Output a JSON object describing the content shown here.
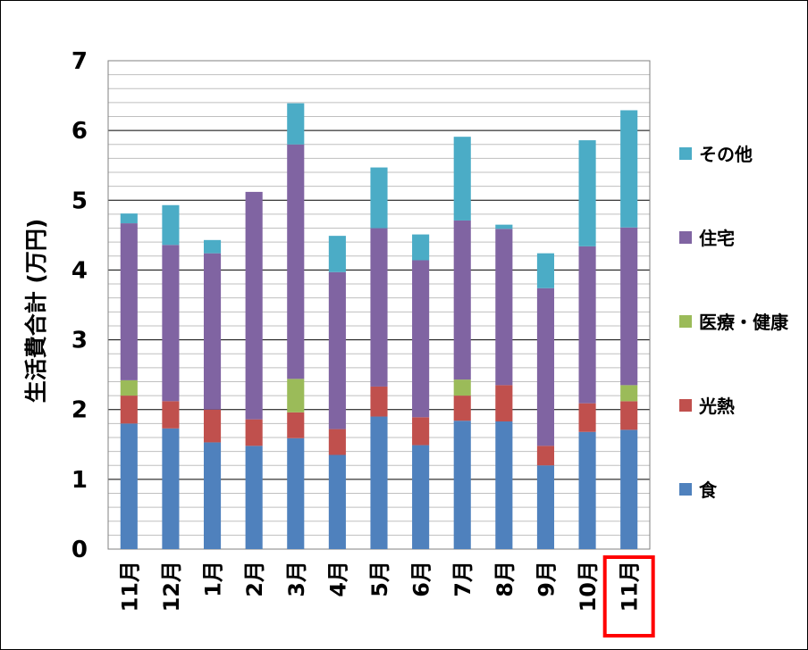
{
  "chart_data": {
    "type": "bar",
    "stacked": true,
    "categories": [
      "11月",
      "12月",
      "1月",
      "2月",
      "3月",
      "4月",
      "5月",
      "6月",
      "7月",
      "8月",
      "9月",
      "10月",
      "11月"
    ],
    "series": [
      {
        "name": "食",
        "color": "#4F81BD",
        "values": [
          1.8,
          1.73,
          1.53,
          1.48,
          1.59,
          1.35,
          1.9,
          1.49,
          1.84,
          1.83,
          1.2,
          1.68,
          1.71
        ]
      },
      {
        "name": "光熱",
        "color": "#C0504D",
        "values": [
          0.4,
          0.39,
          0.47,
          0.38,
          0.37,
          0.37,
          0.43,
          0.4,
          0.36,
          0.52,
          0.28,
          0.41,
          0.41
        ]
      },
      {
        "name": "医療・健康",
        "color": "#9BBB59",
        "values": [
          0.22,
          0.0,
          0.0,
          0.0,
          0.48,
          0.0,
          0.0,
          0.0,
          0.23,
          0.0,
          0.0,
          0.0,
          0.23
        ]
      },
      {
        "name": "住宅",
        "color": "#8064A2",
        "values": [
          2.25,
          2.24,
          2.24,
          3.26,
          3.36,
          2.25,
          2.27,
          2.25,
          2.28,
          2.24,
          2.26,
          2.25,
          2.26
        ]
      },
      {
        "name": "その他",
        "color": "#4BACC6",
        "values": [
          0.14,
          0.57,
          0.19,
          0.0,
          0.59,
          0.52,
          0.87,
          0.37,
          1.2,
          0.06,
          0.5,
          1.52,
          1.68
        ]
      }
    ],
    "ylabel": "生活費合計 (万円)",
    "xlabel": "",
    "ylim": [
      0,
      7
    ],
    "yticks": [
      0,
      1,
      2,
      3,
      4,
      5,
      6,
      7
    ],
    "major_grid_step": 1,
    "minor_grid_step": 0.2,
    "grid": true,
    "legend_position": "right",
    "highlighted_category_index": 12,
    "highlight_color": "#FF0000"
  }
}
